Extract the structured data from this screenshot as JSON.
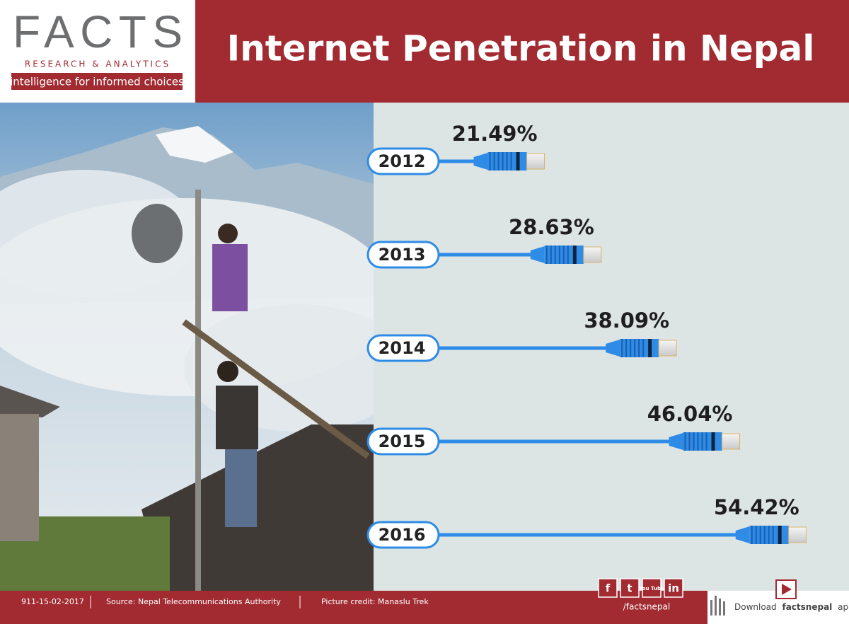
{
  "header": {
    "logo": "FACTS",
    "logo_sub": "RESEARCH & ANALYTICS",
    "tagline": "intelligence for informed choices"
  },
  "chart_data": {
    "type": "bar",
    "title": "Internet Penetration in Nepal",
    "categories": [
      "2012",
      "2013",
      "2014",
      "2015",
      "2016"
    ],
    "values": [
      21.49,
      28.63,
      38.09,
      46.04,
      54.42
    ],
    "value_labels": [
      "21.49%",
      "28.63%",
      "38.09%",
      "46.04%",
      "54.42%"
    ],
    "color": "#2e8be6"
  },
  "footer": {
    "id": "911-15-02-2017",
    "source": "Source: Nepal Telecommunications Authority",
    "credit": "Picture credit: Manaslu Trek",
    "social": [
      "f",
      "t",
      "You Tube",
      "in"
    ],
    "handle": "/factsnepal",
    "download_prefix": "Download",
    "download_app": "factsnepal",
    "download_suffix": "app"
  }
}
